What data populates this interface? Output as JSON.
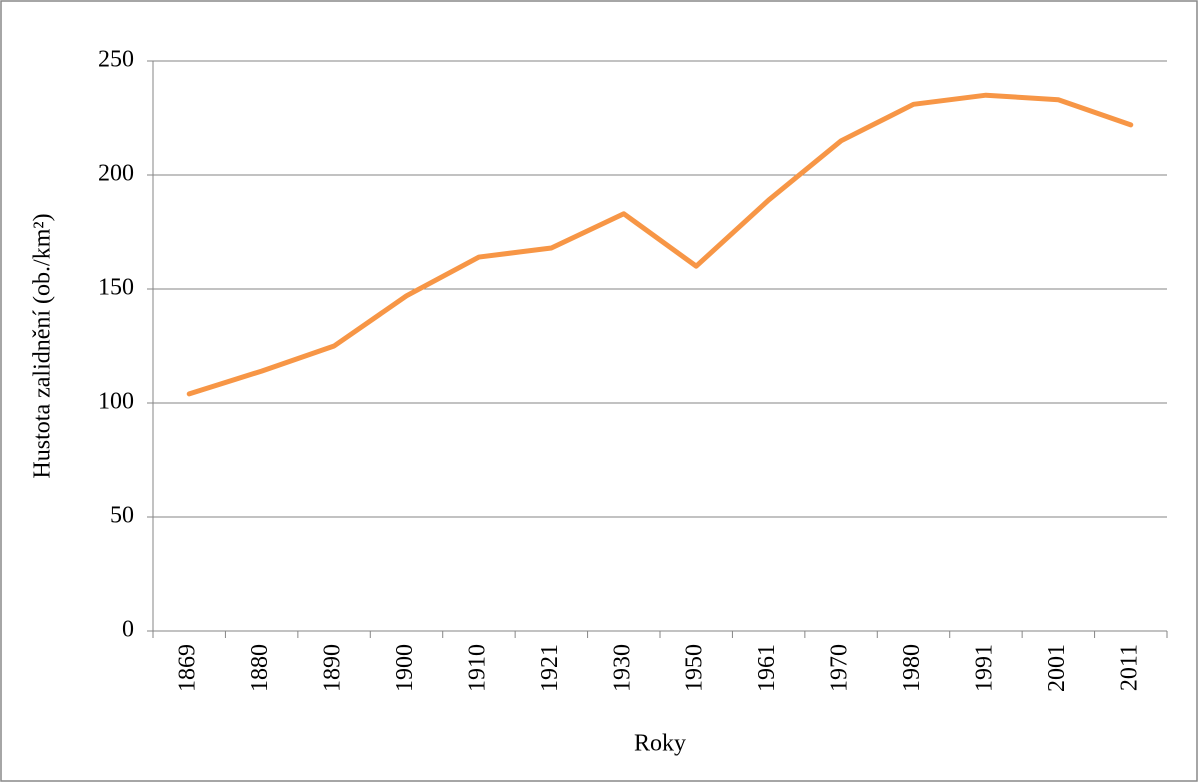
{
  "chart_data": {
    "type": "line",
    "y_label": "Hustota zalidnění (ob./km²)",
    "x_label": "Roky",
    "categories": [
      "1869",
      "1880",
      "1890",
      "1900",
      "1910",
      "1921",
      "1930",
      "1950",
      "1961",
      "1970",
      "1980",
      "1991",
      "2001",
      "2011"
    ],
    "values": [
      104,
      114,
      125,
      147,
      164,
      168,
      183,
      160,
      189,
      215,
      231,
      235,
      233,
      222
    ],
    "color": "#f79646",
    "ylim": [
      0,
      250
    ],
    "yticks": [
      0,
      50,
      100,
      150,
      200,
      250
    ],
    "grid": true
  }
}
